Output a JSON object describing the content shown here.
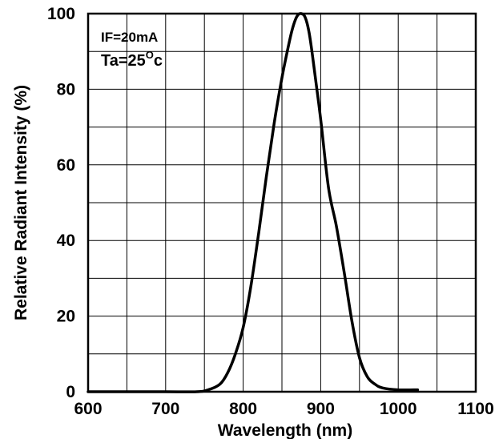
{
  "chart_data": {
    "type": "line",
    "title": "",
    "xlabel": "Wavelength (nm)",
    "ylabel": "Relative Radiant Intensity (%)",
    "xlim": [
      600,
      1100
    ],
    "ylim": [
      0,
      100
    ],
    "x_ticks": [
      600,
      700,
      800,
      900,
      1000,
      1100
    ],
    "y_ticks": [
      0,
      20,
      40,
      60,
      80,
      100
    ],
    "grid": true,
    "annotations": {
      "condition_current": "IF=20mA",
      "ambient_prefix": "Ta=25",
      "ambient_degree": "O",
      "ambient_unit": "c"
    },
    "series": [
      {
        "x": [
          600,
          700,
          740,
          755,
          770,
          780,
          790,
          800,
          810,
          820,
          830,
          840,
          850,
          860,
          865,
          870,
          875,
          880,
          885,
          890,
          900,
          910,
          920,
          930,
          940,
          950,
          960,
          970,
          980,
          1000,
          1025
        ],
        "y": [
          0,
          0,
          0,
          0.5,
          2,
          5,
          10,
          17,
          28,
          42,
          57,
          71,
          83,
          93,
          97,
          99.5,
          100,
          99,
          95,
          88,
          72,
          54,
          44,
          32,
          19,
          9,
          4,
          2,
          1,
          0.5,
          0.5
        ]
      }
    ],
    "colors": {
      "line": "#000000",
      "grid": "#000000",
      "background": "#ffffff"
    }
  }
}
